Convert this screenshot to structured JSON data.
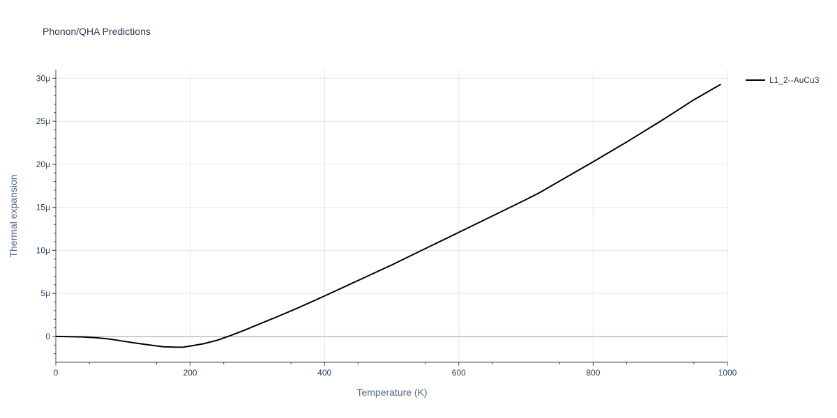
{
  "chart_data": {
    "type": "line",
    "title": "Phonon/QHA Predictions",
    "xlabel": "Temperature (K)",
    "ylabel": "Thermal expansion",
    "xlim": [
      0,
      1000
    ],
    "ylim": [
      -3e-06,
      3.1e-05
    ],
    "xticks": [
      0,
      200,
      400,
      600,
      800,
      1000
    ],
    "xtick_labels": [
      "0",
      "200",
      "400",
      "600",
      "800",
      "1000"
    ],
    "yticks": [
      0,
      5e-06,
      1e-05,
      1.5e-05,
      2e-05,
      2.5e-05,
      3e-05
    ],
    "ytick_labels": [
      "0",
      "5μ",
      "10μ",
      "15μ",
      "20μ",
      "25μ",
      "30μ"
    ],
    "grid": true,
    "legend_position": "top-right",
    "series": [
      {
        "name": "L1_2--AuCu3",
        "color": "#000000",
        "x": [
          0,
          20,
          40,
          60,
          80,
          100,
          120,
          140,
          160,
          180,
          190,
          200,
          220,
          240,
          260,
          280,
          300,
          330,
          360,
          400,
          450,
          500,
          550,
          600,
          650,
          700,
          720,
          760,
          800,
          850,
          900,
          920,
          950,
          990
        ],
        "y": [
          0,
          -2e-08,
          -5e-08,
          -1.5e-07,
          -3e-07,
          -5.5e-07,
          -7.8e-07,
          -1e-06,
          -1.2e-06,
          -1.25e-06,
          -1.24e-06,
          -1.12e-06,
          -8.5e-07,
          -4.5e-07,
          1e-07,
          7e-07,
          1.35e-06,
          2.3e-06,
          3.3e-06,
          4.7e-06,
          6.5e-06,
          8.3e-06,
          1.02e-05,
          1.21e-05,
          1.4e-05,
          1.59e-05,
          1.67e-05,
          1.85e-05,
          2.03e-05,
          2.26e-05,
          2.5e-05,
          2.6e-05,
          2.75e-05,
          2.93e-05
        ]
      }
    ]
  }
}
